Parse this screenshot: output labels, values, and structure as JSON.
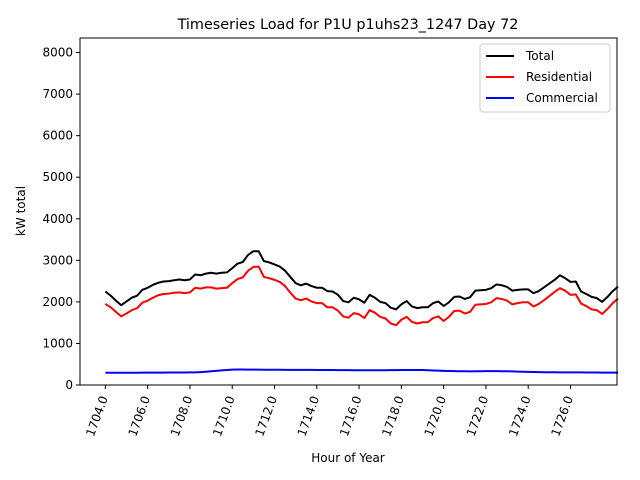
{
  "chart_data": {
    "type": "line",
    "title": "Timeseries Load for P1U p1uhs23_1247  Day 72",
    "xlabel": "Hour of Year",
    "ylabel": "kW total",
    "xlim": [
      1702.8,
      1728.2
    ],
    "ylim": [
      0,
      8350
    ],
    "x_ticks": [
      1704.0,
      1706.0,
      1708.0,
      1710.0,
      1712.0,
      1714.0,
      1716.0,
      1718.0,
      1720.0,
      1722.0,
      1724.0,
      1726.0
    ],
    "x_tick_labels": [
      "1704.0",
      "1706.0",
      "1708.0",
      "1710.0",
      "1712.0",
      "1714.0",
      "1716.0",
      "1718.0",
      "1720.0",
      "1722.0",
      "1724.0",
      "1726.0"
    ],
    "y_ticks": [
      0,
      1000,
      2000,
      3000,
      4000,
      5000,
      6000,
      7000,
      8000
    ],
    "y_tick_labels": [
      "0",
      "1000",
      "2000",
      "3000",
      "4000",
      "5000",
      "6000",
      "7000",
      "8000"
    ],
    "grid": false,
    "legend_position": "top-right",
    "x_start": 1704.0,
    "x_step": 0.25,
    "series": [
      {
        "name": "Total",
        "color": "#000000",
        "values": [
          2250,
          2150,
          2030,
          1920,
          2010,
          2100,
          2150,
          2290,
          2340,
          2410,
          2460,
          2490,
          2500,
          2520,
          2540,
          2520,
          2540,
          2660,
          2640,
          2680,
          2700,
          2680,
          2700,
          2710,
          2810,
          2920,
          2960,
          3130,
          3220,
          3220,
          2980,
          2950,
          2900,
          2850,
          2750,
          2600,
          2450,
          2400,
          2440,
          2380,
          2340,
          2340,
          2260,
          2250,
          2170,
          2020,
          1990,
          2100,
          2060,
          1980,
          2170,
          2100,
          2000,
          1970,
          1860,
          1820,
          1940,
          2020,
          1890,
          1850,
          1870,
          1870,
          1970,
          2010,
          1900,
          1990,
          2120,
          2130,
          2070,
          2110,
          2270,
          2280,
          2290,
          2330,
          2420,
          2400,
          2360,
          2270,
          2290,
          2300,
          2300,
          2210,
          2260,
          2350,
          2440,
          2530,
          2640,
          2570,
          2480,
          2490,
          2250,
          2190,
          2120,
          2090,
          2000,
          2120,
          2260,
          2370
        ]
      },
      {
        "name": "Residential",
        "color": "#ff0000",
        "values": [
          1950,
          1870,
          1760,
          1650,
          1720,
          1800,
          1850,
          1980,
          2030,
          2100,
          2160,
          2190,
          2200,
          2220,
          2230,
          2210,
          2230,
          2340,
          2320,
          2350,
          2350,
          2320,
          2330,
          2340,
          2450,
          2550,
          2590,
          2750,
          2840,
          2850,
          2600,
          2570,
          2530,
          2480,
          2380,
          2220,
          2080,
          2040,
          2080,
          2010,
          1970,
          1970,
          1870,
          1870,
          1790,
          1650,
          1620,
          1730,
          1700,
          1610,
          1800,
          1740,
          1640,
          1600,
          1480,
          1440,
          1570,
          1640,
          1520,
          1480,
          1510,
          1510,
          1610,
          1650,
          1540,
          1640,
          1780,
          1790,
          1720,
          1760,
          1930,
          1940,
          1950,
          1990,
          2090,
          2070,
          2030,
          1940,
          1970,
          1990,
          1990,
          1890,
          1950,
          2040,
          2140,
          2240,
          2330,
          2270,
          2170,
          2180,
          1960,
          1900,
          1820,
          1800,
          1710,
          1830,
          1970,
          2080
        ]
      },
      {
        "name": "Commercial",
        "color": "#0000ff",
        "values": [
          295,
          295,
          295,
          296,
          296,
          296,
          296,
          297,
          297,
          298,
          298,
          299,
          300,
          300,
          301,
          302,
          304,
          305,
          310,
          318,
          330,
          340,
          352,
          362,
          370,
          372,
          372,
          370,
          370,
          370,
          368,
          367,
          366,
          366,
          365,
          365,
          364,
          364,
          363,
          363,
          362,
          362,
          361,
          360,
          359,
          358,
          357,
          356,
          355,
          354,
          354,
          354,
          355,
          356,
          357,
          358,
          360,
          361,
          362,
          362,
          360,
          355,
          350,
          345,
          340,
          336,
          333,
          331,
          330,
          329,
          330,
          331,
          333,
          334,
          333,
          332,
          330,
          327,
          322,
          318,
          315,
          312,
          310,
          308,
          307,
          306,
          305,
          305,
          304,
          304,
          303,
          302,
          301,
          300,
          299,
          299,
          298,
          298
        ]
      }
    ]
  }
}
